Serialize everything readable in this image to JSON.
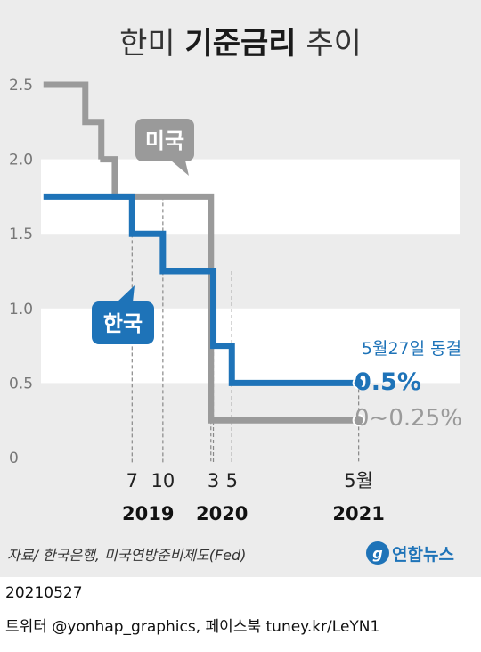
{
  "title_plain_1": "한미 ",
  "title_bold": "기준금리",
  "title_plain_2": " 추이",
  "source": "자료/ 한국은행, 미국연방준비제도(Fed)",
  "logo_text": "연합뉴스",
  "footer": {
    "date": "20210527",
    "social": "트위터 @yonhap_graphics, 페이스북 tuney.kr/LeYN1"
  },
  "chart_data": {
    "type": "line",
    "title": "한미 기준금리 추이",
    "y_ticks": [
      "0",
      "0.5",
      "1.0",
      "1.5",
      "2.0",
      "2.5"
    ],
    "ylim": [
      0,
      2.5
    ],
    "x_ticks": [
      {
        "label": "7",
        "x": 2019.54
      },
      {
        "label": "10",
        "x": 2019.79
      },
      {
        "label": "3",
        "x": 2020.2
      },
      {
        "label": "5",
        "x": 2020.35
      },
      {
        "label": "5월",
        "x": 2021.38
      }
    ],
    "year_labels": [
      {
        "label": "2019",
        "x": 2019.67
      },
      {
        "label": "2020",
        "x": 2020.27
      },
      {
        "label": "2021",
        "x": 2021.38
      }
    ],
    "xlim": [
      2018.8,
      2022.2
    ],
    "series": [
      {
        "name": "미국",
        "color": "#9a9a9a",
        "step_points": [
          [
            2018.82,
            2.5
          ],
          [
            2019.16,
            2.5
          ],
          [
            2019.16,
            2.25
          ],
          [
            2019.29,
            2.25
          ],
          [
            2019.29,
            2.0
          ],
          [
            2019.28,
            2.0
          ],
          [
            2019.4,
            2.0
          ],
          [
            2019.4,
            1.75
          ],
          [
            2019.8,
            1.75
          ],
          [
            2019.8,
            1.75
          ],
          [
            2020.18,
            1.75
          ],
          [
            2020.18,
            0.25
          ],
          [
            2021.38,
            0.25
          ]
        ],
        "end_label": "0~0.25%"
      },
      {
        "name": "한국",
        "color": "#1e73b8",
        "step_points": [
          [
            2018.82,
            1.75
          ],
          [
            2019.54,
            1.75
          ],
          [
            2019.54,
            1.5
          ],
          [
            2019.79,
            1.5
          ],
          [
            2019.79,
            1.25
          ],
          [
            2020.2,
            1.25
          ],
          [
            2020.2,
            0.75
          ],
          [
            2020.35,
            0.75
          ],
          [
            2020.35,
            0.5
          ],
          [
            2021.38,
            0.5
          ]
        ],
        "end_label": "0.5%"
      }
    ],
    "annotation": "5월27일 동결",
    "grid": "alternating-bands"
  }
}
